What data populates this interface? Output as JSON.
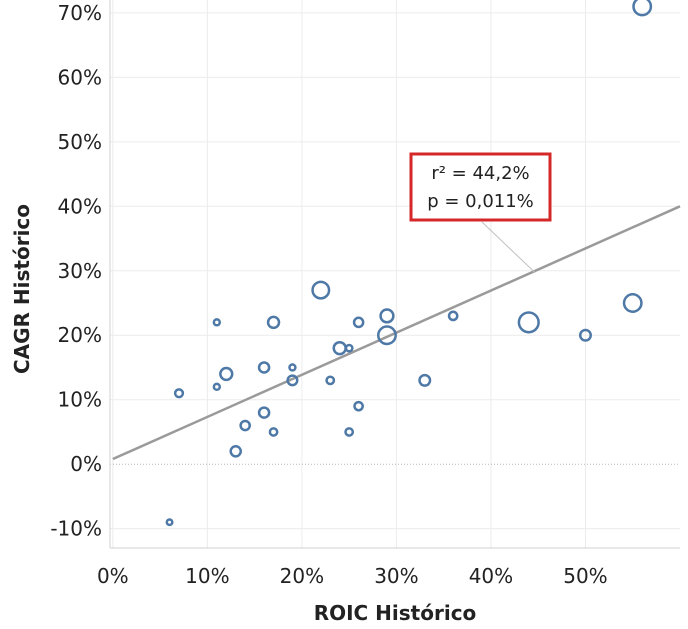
{
  "chart_data": {
    "type": "scatter",
    "xlabel": "ROIC Histórico",
    "ylabel": "CAGR Histórico",
    "x_ticks": [
      {
        "value": 0,
        "label": "0%"
      },
      {
        "value": 10,
        "label": "10%"
      },
      {
        "value": 20,
        "label": "20%"
      },
      {
        "value": 30,
        "label": "30%"
      },
      {
        "value": 40,
        "label": "40%"
      },
      {
        "value": 50,
        "label": "50%"
      }
    ],
    "y_ticks": [
      {
        "value": -10,
        "label": "-10%"
      },
      {
        "value": 0,
        "label": "0%"
      },
      {
        "value": 10,
        "label": "10%"
      },
      {
        "value": 20,
        "label": "20%"
      },
      {
        "value": 30,
        "label": "30%"
      },
      {
        "value": 40,
        "label": "40%"
      },
      {
        "value": 50,
        "label": "50%"
      },
      {
        "value": 60,
        "label": "60%"
      },
      {
        "value": 70,
        "label": "70%"
      }
    ],
    "xlim": [
      -0.3,
      60
    ],
    "ylim": [
      -13,
      72
    ],
    "grid": true,
    "point_color": "#4e79a7",
    "trendline_color": "#9a9a9a",
    "points": [
      {
        "x": 56,
        "y": 71,
        "size": 3
      },
      {
        "x": 55,
        "y": 25,
        "size": 3
      },
      {
        "x": 44,
        "y": 22,
        "size": 3.5
      },
      {
        "x": 50,
        "y": 20,
        "size": 1.5
      },
      {
        "x": 36,
        "y": 23,
        "size": 1
      },
      {
        "x": 33,
        "y": 13,
        "size": 1.5
      },
      {
        "x": 29,
        "y": 23,
        "size": 2
      },
      {
        "x": 29,
        "y": 20,
        "size": 3
      },
      {
        "x": 26,
        "y": 22,
        "size": 1.2
      },
      {
        "x": 26,
        "y": 9,
        "size": 1
      },
      {
        "x": 25,
        "y": 18,
        "size": 0.6
      },
      {
        "x": 25,
        "y": 5,
        "size": 0.8
      },
      {
        "x": 24,
        "y": 18,
        "size": 1.8
      },
      {
        "x": 23,
        "y": 13,
        "size": 0.8
      },
      {
        "x": 22,
        "y": 27,
        "size": 2.8
      },
      {
        "x": 19,
        "y": 15,
        "size": 0.5
      },
      {
        "x": 19,
        "y": 13,
        "size": 1.3
      },
      {
        "x": 17,
        "y": 22,
        "size": 1.6
      },
      {
        "x": 17,
        "y": 5,
        "size": 0.8
      },
      {
        "x": 16,
        "y": 15,
        "size": 1.4
      },
      {
        "x": 16,
        "y": 8,
        "size": 1.4
      },
      {
        "x": 14,
        "y": 6,
        "size": 1.2
      },
      {
        "x": 13,
        "y": 2,
        "size": 1.4
      },
      {
        "x": 12,
        "y": 14,
        "size": 1.8
      },
      {
        "x": 11,
        "y": 22,
        "size": 0.5
      },
      {
        "x": 11,
        "y": 12,
        "size": 0.5
      },
      {
        "x": 7,
        "y": 11,
        "size": 0.9
      },
      {
        "x": 6,
        "y": -9,
        "size": 0.4
      }
    ],
    "trendline": {
      "x": [
        0,
        60
      ],
      "y": [
        0.8,
        40
      ]
    },
    "annotation": {
      "line1": "r² = 44,2%",
      "line2": "p = 0,011%",
      "anchor": {
        "x": 45,
        "y": 30
      },
      "border_color": "#d62728"
    }
  }
}
